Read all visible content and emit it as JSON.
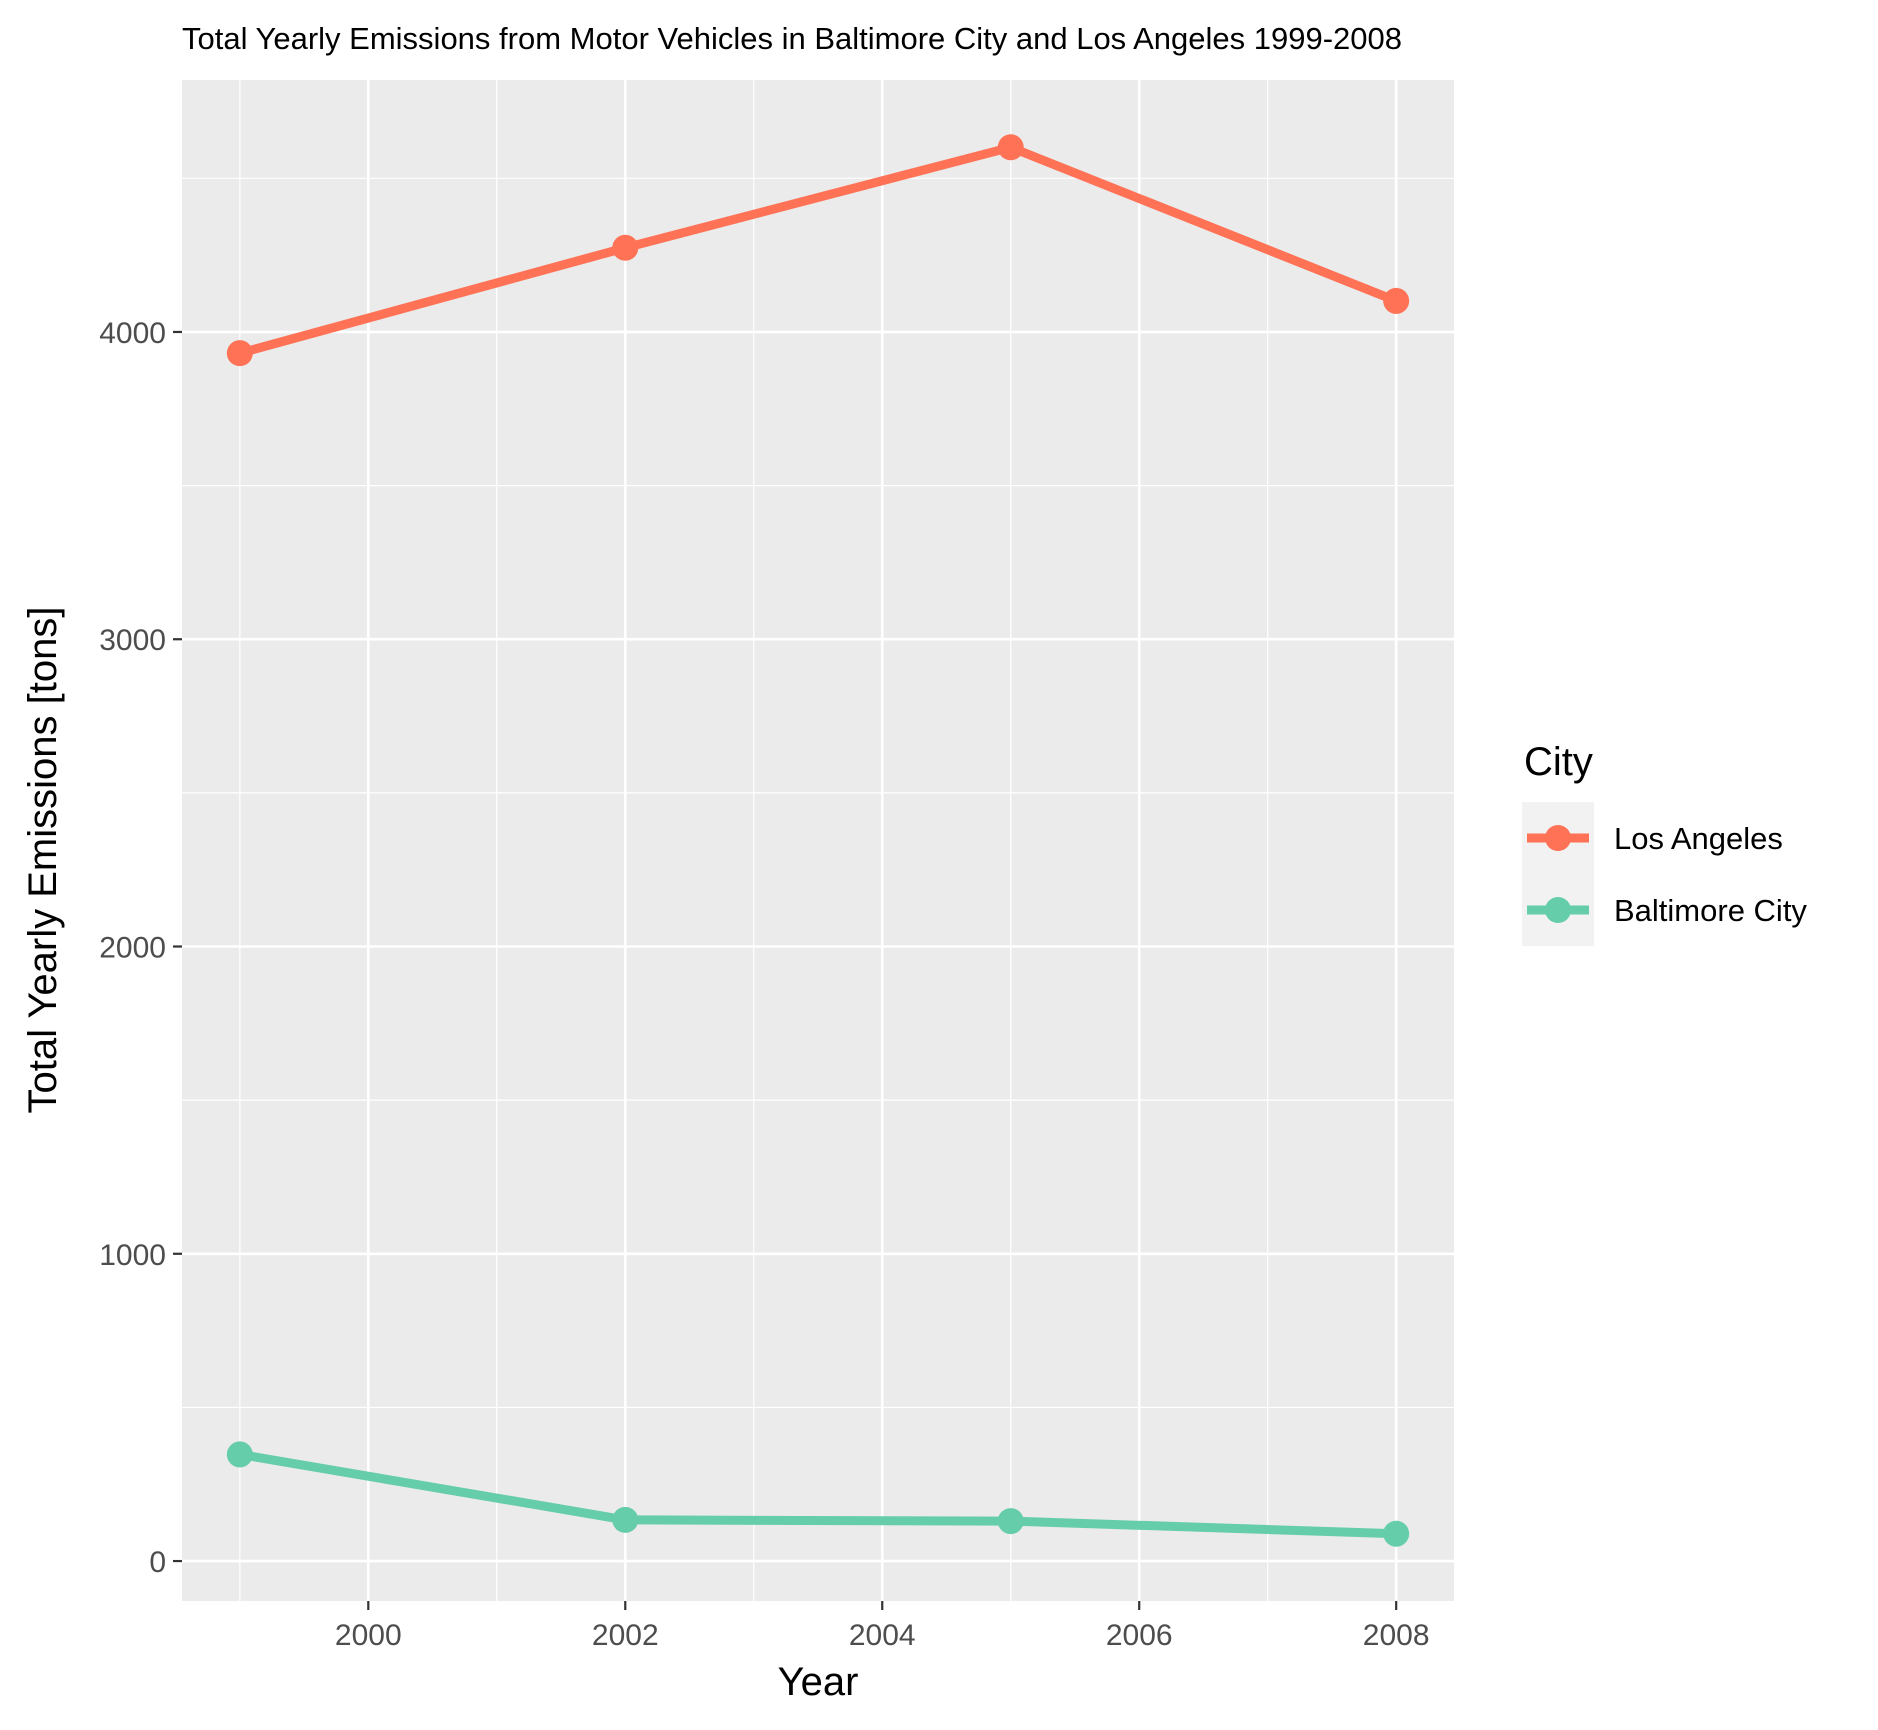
{
  "chart_data": {
    "type": "line",
    "title": "Total Yearly Emissions from Motor Vehicles in Baltimore City and Los Angeles 1999-2008",
    "xlabel": "Year",
    "ylabel": "Total Yearly Emissions [tons]",
    "x": [
      1999,
      2002,
      2005,
      2008
    ],
    "xlim": [
      1998.55,
      2008.45
    ],
    "ylim": [
      -130,
      4820
    ],
    "x_ticks": [
      "2000",
      "2002",
      "2004",
      "2006",
      "2008"
    ],
    "y_ticks": [
      "0",
      "1000",
      "2000",
      "3000",
      "4000"
    ],
    "grid": true,
    "panel_background": "#EBEBEB",
    "legend": {
      "title": "City",
      "position": "right"
    },
    "series": [
      {
        "name": "Los Angeles",
        "color": "#FF7256",
        "values": [
          3931,
          4274,
          4601,
          4101
        ]
      },
      {
        "name": "Baltimore City",
        "color": "#66CDAA",
        "values": [
          347,
          134,
          130,
          89
        ]
      }
    ]
  }
}
